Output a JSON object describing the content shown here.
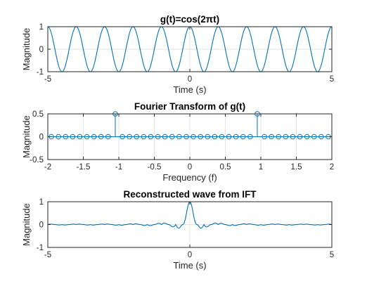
{
  "colors": {
    "line": "#0072BD",
    "axis": "#262626",
    "grid": "#e6e6e6",
    "background": "#ffffff"
  },
  "chart_data": [
    {
      "type": "line",
      "title": "g(t)=cos(2πt)",
      "xlabel": "Time (s)",
      "ylabel": "Magnitude",
      "xlim": [
        -5,
        5
      ],
      "ylim": [
        -1,
        1
      ],
      "xticks": [
        -5,
        0,
        5
      ],
      "yticks": [
        -1,
        0,
        1
      ],
      "grid": true,
      "series": [
        {
          "function": "cos(2*pi*t)",
          "x_range": [
            -5,
            5
          ]
        }
      ]
    },
    {
      "type": "stem",
      "title": "Fourier Transform of g(t)",
      "xlabel": "Frequency (f)",
      "ylabel": "Magnitude",
      "xlim": [
        -2,
        2
      ],
      "ylim": [
        -0.5,
        0.5
      ],
      "xticks": [
        -2,
        -1.5,
        -1,
        -0.5,
        0,
        0.5,
        1,
        1.5,
        2
      ],
      "yticks": [
        -0.5,
        0,
        0.5
      ],
      "grid": true,
      "series": [
        {
          "x_start": -1.95,
          "x_step": 0.1,
          "count": 40,
          "peaks": [
            {
              "x": -1.05,
              "y": 0.5
            },
            {
              "x": 0.95,
              "y": 0.5
            }
          ],
          "other_value": 0
        }
      ]
    },
    {
      "type": "line",
      "title": "Reconstructed wave from IFT",
      "xlabel": "Time (s)",
      "ylabel": "Magnitude",
      "xlim": [
        -5,
        5
      ],
      "ylim": [
        -1,
        1
      ],
      "xticks": [
        -5,
        0,
        5
      ],
      "yticks": [
        -1,
        0,
        1
      ],
      "grid": true,
      "series": [
        {
          "function": "cos(2*pi*f0*t)*|sin(pi*N*df*t)/(N*sin(pi*df*t))|",
          "f0": 1,
          "N": 40,
          "df": 0.1,
          "x_range": [
            -5,
            5
          ]
        }
      ]
    }
  ]
}
